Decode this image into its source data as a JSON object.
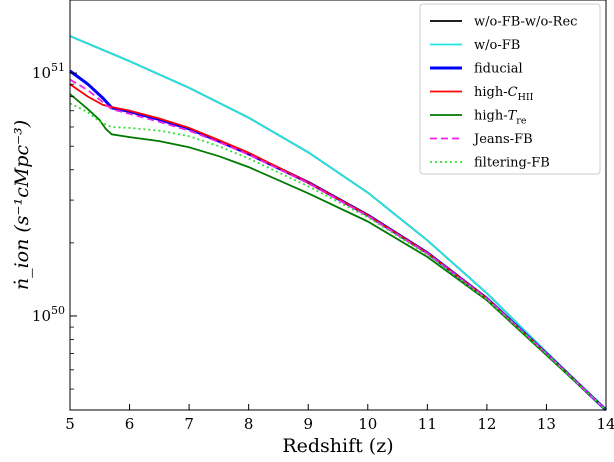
{
  "chart_data": {
    "type": "line",
    "xlabel": "Redshift (z)",
    "ylabel": "ṅ_ion (s⁻¹cMpc⁻³)",
    "xlim": [
      5,
      14
    ],
    "ylim": [
      4.1e+49,
      2e+51
    ],
    "y_scale": "log",
    "grid": false,
    "legend_position": "top-right",
    "x_ticks": [
      5,
      6,
      7,
      8,
      9,
      10,
      11,
      12,
      13,
      14
    ],
    "y_ticks": [
      {
        "value": 1e+51,
        "label_base": "10",
        "label_exp": "51"
      },
      {
        "value": 1e+50,
        "label_base": "10",
        "label_exp": "50"
      }
    ],
    "series": [
      {
        "name": "w/o-FB-w/o-Rec",
        "color": "#000000",
        "width": 1.8,
        "dash": "",
        "points": [
          [
            5,
            1.42e+51
          ],
          [
            6,
            1.12e+51
          ],
          [
            7,
            8.7e+50
          ],
          [
            8,
            6.55e+50
          ],
          [
            9,
            4.72e+50
          ],
          [
            10,
            3.22e+50
          ],
          [
            11,
            2.05e+50
          ],
          [
            12,
            1.24e+50
          ],
          [
            13,
            7.1e+49
          ],
          [
            14,
            4.1e+49
          ]
        ]
      },
      {
        "name": "w/o-FB",
        "color": "#22e5e5",
        "width": 1.8,
        "dash": "",
        "points": [
          [
            5,
            1.42e+51
          ],
          [
            6,
            1.12e+51
          ],
          [
            7,
            8.7e+50
          ],
          [
            8,
            6.55e+50
          ],
          [
            9,
            4.72e+50
          ],
          [
            10,
            3.22e+50
          ],
          [
            11,
            2.05e+50
          ],
          [
            12,
            1.24e+50
          ],
          [
            13,
            7.1e+49
          ],
          [
            14,
            4.1e+49
          ]
        ]
      },
      {
        "name": "fiducial",
        "color": "#0000ff",
        "width": 3,
        "dash": "",
        "points": [
          [
            5,
            1.02e+51
          ],
          [
            5.3,
            9e+50
          ],
          [
            5.55,
            7.9e+50
          ],
          [
            5.7,
            7.2e+50
          ],
          [
            6,
            6.95e+50
          ],
          [
            6.5,
            6.45e+50
          ],
          [
            7,
            5.9e+50
          ],
          [
            7.5,
            5.25e+50
          ],
          [
            8,
            4.65e+50
          ],
          [
            9,
            3.55e+50
          ],
          [
            10,
            2.6e+50
          ],
          [
            11,
            1.82e+50
          ],
          [
            12,
            1.18e+50
          ],
          [
            13,
            7e+49
          ],
          [
            14,
            4.1e+49
          ]
        ]
      },
      {
        "name": "high-C_HII",
        "color": "#ff0000",
        "width": 1.8,
        "dash": "",
        "points": [
          [
            5,
            9e+50
          ],
          [
            5.3,
            8e+50
          ],
          [
            5.55,
            7.4e+50
          ],
          [
            5.7,
            7.25e+50
          ],
          [
            6,
            7e+50
          ],
          [
            6.5,
            6.5e+50
          ],
          [
            7,
            5.95e+50
          ],
          [
            7.5,
            5.3e+50
          ],
          [
            8,
            4.7e+50
          ],
          [
            9,
            3.55e+50
          ],
          [
            10,
            2.6e+50
          ],
          [
            11,
            1.82e+50
          ],
          [
            12,
            1.18e+50
          ],
          [
            13,
            7e+49
          ],
          [
            14,
            4.1e+49
          ]
        ]
      },
      {
        "name": "high-T_re",
        "color": "#007a00",
        "width": 1.8,
        "dash": "",
        "points": [
          [
            5,
            8.2e+50
          ],
          [
            5.3,
            7.1e+50
          ],
          [
            5.5,
            6.4e+50
          ],
          [
            5.6,
            5.9e+50
          ],
          [
            5.7,
            5.6e+50
          ],
          [
            6,
            5.45e+50
          ],
          [
            6.5,
            5.25e+50
          ],
          [
            7,
            4.95e+50
          ],
          [
            7.5,
            4.55e+50
          ],
          [
            8,
            4.1e+50
          ],
          [
            9,
            3.2e+50
          ],
          [
            10,
            2.45e+50
          ],
          [
            11,
            1.75e+50
          ],
          [
            12,
            1.16e+50
          ],
          [
            13,
            6.9e+49
          ],
          [
            14,
            4.1e+49
          ]
        ]
      },
      {
        "name": "Jeans-FB",
        "color": "#ee22ee",
        "width": 1.8,
        "dash": "7,4",
        "points": [
          [
            5,
            9.4e+50
          ],
          [
            5.3,
            8.5e+50
          ],
          [
            5.55,
            7.6e+50
          ],
          [
            5.7,
            7.1e+50
          ],
          [
            6,
            6.8e+50
          ],
          [
            6.5,
            6.3e+50
          ],
          [
            7,
            5.8e+50
          ],
          [
            7.5,
            5.2e+50
          ],
          [
            8,
            4.62e+50
          ],
          [
            9,
            3.52e+50
          ],
          [
            10,
            2.58e+50
          ],
          [
            11,
            1.81e+50
          ],
          [
            12,
            1.18e+50
          ],
          [
            13,
            7e+49
          ],
          [
            14,
            4.1e+49
          ]
        ]
      },
      {
        "name": "filtering-FB",
        "color": "#33dd33",
        "width": 1.8,
        "dash": "2,3",
        "points": [
          [
            5,
            7.5e+50
          ],
          [
            5.3,
            6.9e+50
          ],
          [
            5.5,
            6.3e+50
          ],
          [
            5.7,
            6e+50
          ],
          [
            6,
            5.95e+50
          ],
          [
            6.5,
            5.8e+50
          ],
          [
            7,
            5.5e+50
          ],
          [
            7.5,
            5e+50
          ],
          [
            8,
            4.45e+50
          ],
          [
            9,
            3.42e+50
          ],
          [
            10,
            2.55e+50
          ],
          [
            11,
            1.79e+50
          ],
          [
            12,
            1.17e+50
          ],
          [
            13,
            7e+49
          ],
          [
            14,
            4.1e+49
          ]
        ]
      }
    ],
    "legend": [
      {
        "label": "w/o-FB-w/o-Rec",
        "sub": ""
      },
      {
        "label": "w/o-FB",
        "sub": ""
      },
      {
        "label": "fiducial",
        "sub": ""
      },
      {
        "label": "high-C",
        "sub": "HII"
      },
      {
        "label": "high-T",
        "sub": "re"
      },
      {
        "label": "Jeans-FB",
        "sub": ""
      },
      {
        "label": "filtering-FB",
        "sub": ""
      }
    ]
  }
}
